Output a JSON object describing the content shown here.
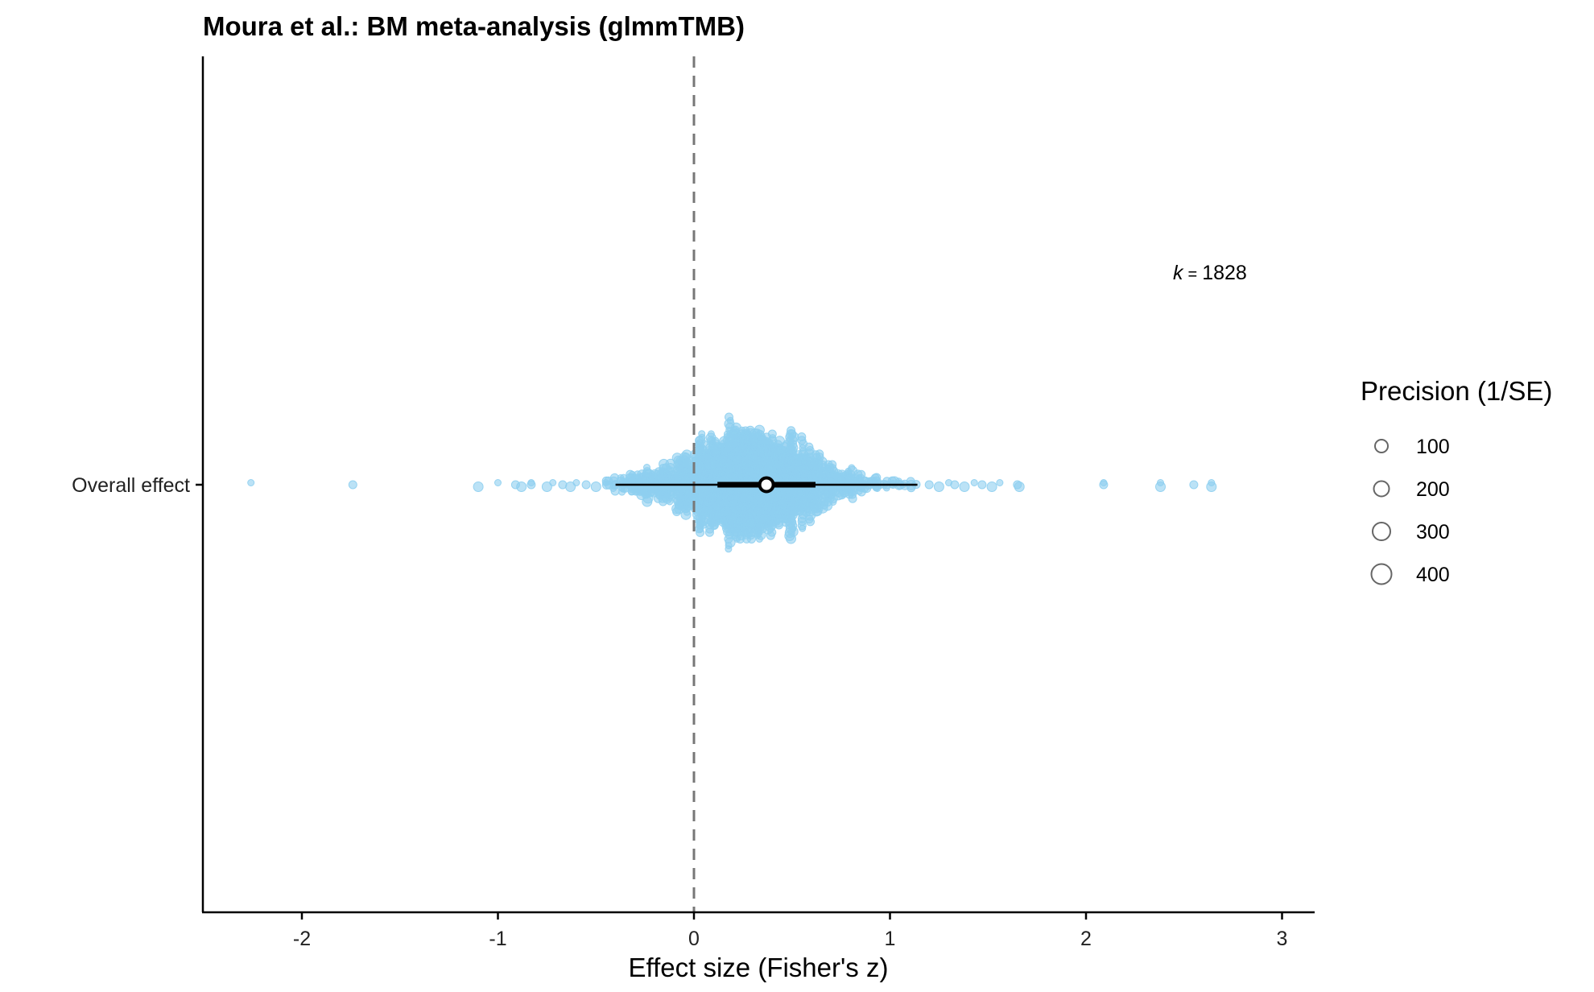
{
  "chart_data": {
    "type": "scatter",
    "subtype": "orchard-plot",
    "title": "Moura et al.: BM meta-analysis (glmmTMB)",
    "xlabel": "Effect size (Fisher's z)",
    "ylabel": "",
    "xlim": [
      -2.5,
      3.17
    ],
    "x_ticks": [
      -2,
      -1,
      0,
      1,
      2,
      3
    ],
    "x_tick_labels": [
      "-2",
      "-1",
      "0",
      "1",
      "2",
      "3"
    ],
    "categories": [
      "Overall effect"
    ],
    "reference_line_x": 0,
    "k_label_prefix": "k",
    "k_label_eq": "=",
    "k": "1828",
    "point_color": "#8ECFF0",
    "grid": false,
    "estimate": {
      "mean": 0.37,
      "ci": [
        0.12,
        0.62
      ],
      "pi": [
        -0.4,
        1.14
      ]
    },
    "distribution": {
      "center": 0.27,
      "spread": 0.28,
      "n": 1828
    },
    "outliers": [
      -2.26,
      -1.74,
      -1.1,
      -1.0,
      -0.91,
      -0.88,
      -0.83,
      -0.83,
      -0.75,
      -0.72,
      -0.67,
      -0.63,
      -0.6,
      -0.55,
      -0.5,
      -0.45,
      1.2,
      1.25,
      1.3,
      1.33,
      1.38,
      1.43,
      1.47,
      1.52,
      1.56,
      1.65,
      1.66,
      2.09,
      2.09,
      2.38,
      2.38,
      2.55,
      2.64,
      2.64
    ],
    "legend": {
      "title": "Precision (1/SE)",
      "placement": "right",
      "items": [
        {
          "label": "100",
          "value": 100
        },
        {
          "label": "200",
          "value": 200
        },
        {
          "label": "300",
          "value": 300
        },
        {
          "label": "400",
          "value": 400
        }
      ]
    }
  }
}
